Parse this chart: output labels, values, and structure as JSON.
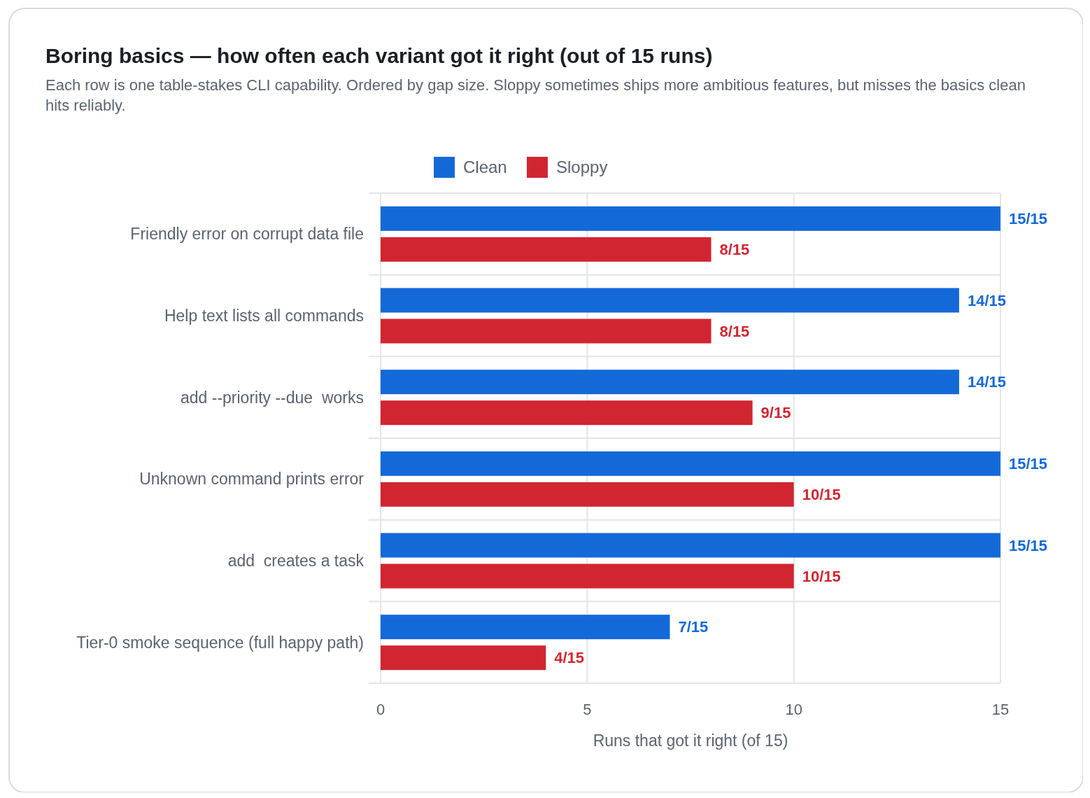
{
  "chart_data": {
    "type": "bar",
    "orientation": "horizontal",
    "title": "Boring basics — how often each variant got it right (out of 15 runs)",
    "subtitle": "Each row is one table-stakes CLI capability. Ordered by gap size. Sloppy sometimes ships more ambitious features, but misses the basics clean hits reliably.",
    "xlabel": "Runs that got it right (of 15)",
    "categories": [
      "Friendly error on corrupt data file",
      "Help text lists all commands",
      "add --priority --due  works",
      "Unknown command prints error",
      "add  creates a task",
      "Tier-0 smoke sequence (full happy path)"
    ],
    "series": [
      {
        "name": "Clean",
        "color": "#1469d9",
        "values": [
          15,
          14,
          14,
          15,
          15,
          7
        ],
        "value_labels": [
          "15/15",
          "14/15",
          "14/15",
          "15/15",
          "15/15",
          "7/15"
        ]
      },
      {
        "name": "Sloppy",
        "color": "#d12631",
        "values": [
          8,
          8,
          9,
          10,
          10,
          4
        ],
        "value_labels": [
          "8/15",
          "8/15",
          "9/15",
          "10/15",
          "10/15",
          "4/15"
        ]
      }
    ],
    "xlim": [
      0,
      15
    ],
    "xticks": [
      0,
      5,
      10,
      15
    ],
    "grid": true,
    "legend": "top"
  }
}
